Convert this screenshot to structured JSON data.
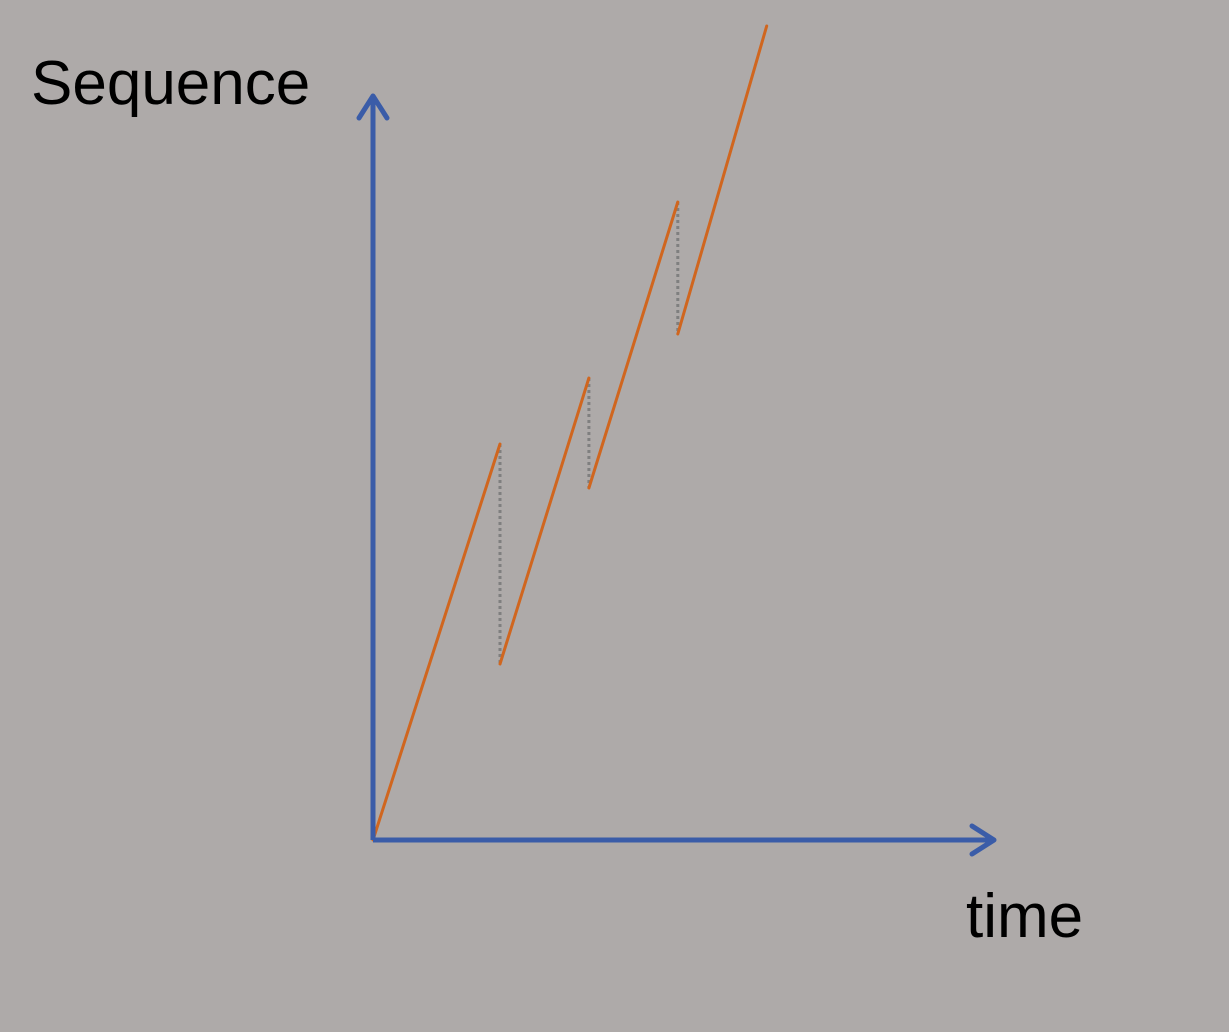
{
  "labels": {
    "y_axis": "Sequence",
    "x_axis": "time"
  },
  "colors": {
    "background": "#aeaaa9",
    "axis": "#3a5ca8",
    "sequence_line": "#d0661f",
    "gap_line": "#7f7f7f",
    "text": "#000000"
  },
  "series": [
    {
      "segment": 1,
      "start": {
        "t": 0.0,
        "seq": 0.0
      },
      "end": {
        "t": 1.0,
        "seq": 1.8
      }
    },
    {
      "segment": 2,
      "start": {
        "t": 1.0,
        "seq": 0.8
      },
      "end": {
        "t": 1.7,
        "seq": 2.1
      }
    },
    {
      "segment": 3,
      "start": {
        "t": 1.7,
        "seq": 1.6
      },
      "end": {
        "t": 2.4,
        "seq": 2.9
      }
    },
    {
      "segment": 4,
      "start": {
        "t": 2.4,
        "seq": 2.3
      },
      "end": {
        "t": 3.1,
        "seq": 3.7
      }
    }
  ],
  "gaps": [
    {
      "t": 1.0,
      "from_seq": 1.8,
      "to_seq": 0.8
    },
    {
      "t": 1.7,
      "from_seq": 2.1,
      "to_seq": 1.6
    },
    {
      "t": 2.4,
      "from_seq": 2.9,
      "to_seq": 2.3
    }
  ]
}
